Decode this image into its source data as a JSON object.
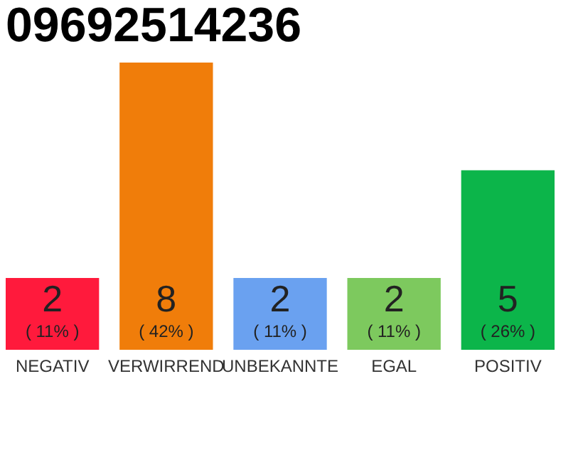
{
  "chart_data": {
    "type": "bar",
    "title": "09692514236",
    "categories": [
      "NEGATIV",
      "VERWIRREND",
      "UNBEKANNTE",
      "EGAL",
      "POSITIV"
    ],
    "values": [
      2,
      8,
      2,
      2,
      5
    ],
    "colors": [
      "#ff1a3c",
      "#f07d0a",
      "#6aa1f0",
      "#7dc95e",
      "#0cb54a"
    ],
    "data_labels": true,
    "annotations": [
      {
        "text": "( 11% )",
        "x": "NEGATIV",
        "y": 0
      },
      {
        "text": "( 42% )",
        "x": "VERWIRREND",
        "y": 0
      },
      {
        "text": "( 11% )",
        "x": "UNBEKANNTE",
        "y": 0
      },
      {
        "text": "( 11% )",
        "x": "EGAL",
        "y": 0
      },
      {
        "text": "( 26% )",
        "x": "POSITIV",
        "y": 0
      }
    ]
  }
}
